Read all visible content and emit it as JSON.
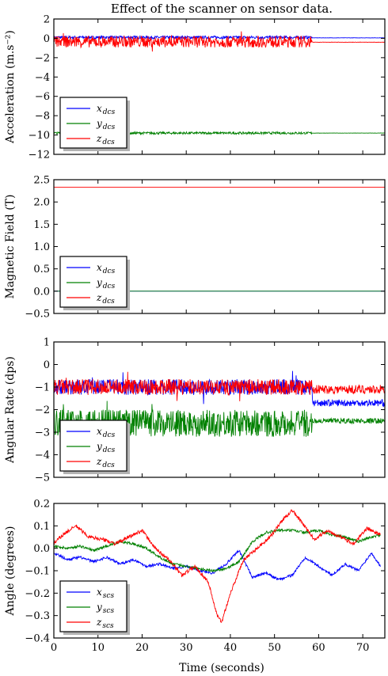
{
  "title": "Effect of the scanner on sensor data.",
  "xlabel": "Time (seconds)",
  "colors": {
    "x": "#0000ff",
    "y": "#008000",
    "z": "#ff0000"
  },
  "chart_data": [
    {
      "type": "line",
      "ylabel": "Acceleration (m.s⁻²)",
      "xlim": [
        0,
        75
      ],
      "ylim": [
        -12,
        2
      ],
      "xticks": [
        0,
        10,
        20,
        30,
        40,
        50,
        60,
        70
      ],
      "yticks": [
        -12,
        -10,
        -8,
        -6,
        -4,
        -2,
        0,
        2
      ],
      "xtick_labels": [
        "",
        "",
        "",
        "",
        "",
        "",
        "",
        ""
      ],
      "ytick_labels": [
        "−12",
        "−10",
        "−8",
        "−6",
        "−4",
        "−2",
        "0",
        "2"
      ],
      "legend": {
        "placement": "lower-left",
        "entries": [
          {
            "main": "x",
            "sub": "dcs"
          },
          {
            "main": "y",
            "sub": "dcs"
          },
          {
            "main": "z",
            "sub": "dcs"
          }
        ]
      },
      "series": [
        {
          "key": "x",
          "x": [
            0,
            58.5,
            58.6,
            75
          ],
          "y": [
            0.1,
            0.1,
            0.05,
            0.05
          ],
          "noise": 0.15,
          "noise_until": 58.5
        },
        {
          "key": "y",
          "x": [
            0,
            58.5,
            58.6,
            75
          ],
          "y": [
            -9.8,
            -9.8,
            -9.8,
            -9.8
          ],
          "noise": 0.12,
          "noise_until": 58.5
        },
        {
          "key": "z",
          "x": [
            0,
            58.5,
            58.6,
            75
          ],
          "y": [
            -0.35,
            -0.35,
            -0.4,
            -0.4
          ],
          "noise": 0.6,
          "noise_until": 58.5
        }
      ]
    },
    {
      "type": "line",
      "ylabel": "Magnetic Field (T)",
      "xlim": [
        0,
        75
      ],
      "ylim": [
        -0.5,
        2.5
      ],
      "xticks": [
        0,
        10,
        20,
        30,
        40,
        50,
        60,
        70
      ],
      "yticks": [
        -0.5,
        0,
        0.5,
        1,
        1.5,
        2,
        2.5
      ],
      "xtick_labels": [
        "",
        "",
        "",
        "",
        "",
        "",
        "",
        ""
      ],
      "ytick_labels": [
        "−0.5",
        "0.0",
        "0.5",
        "1.0",
        "1.5",
        "2.0",
        "2.5"
      ],
      "legend": {
        "placement": "lower-left",
        "entries": [
          {
            "main": "x",
            "sub": "dcs"
          },
          {
            "main": "y",
            "sub": "dcs"
          },
          {
            "main": "z",
            "sub": "dcs"
          }
        ]
      },
      "series": [
        {
          "key": "x",
          "x": [
            0,
            75
          ],
          "y": [
            0,
            0
          ],
          "noise": 0
        },
        {
          "key": "y",
          "x": [
            0,
            75
          ],
          "y": [
            0,
            0
          ],
          "noise": 0
        },
        {
          "key": "z",
          "x": [
            0,
            75
          ],
          "y": [
            2.33,
            2.33
          ],
          "noise": 0
        }
      ]
    },
    {
      "type": "line",
      "ylabel": "Angular Rate (dps)",
      "xlim": [
        0,
        75
      ],
      "ylim": [
        -5,
        1
      ],
      "xticks": [
        0,
        10,
        20,
        30,
        40,
        50,
        60,
        70
      ],
      "yticks": [
        -5,
        -4,
        -3,
        -2,
        -1,
        0,
        1
      ],
      "xtick_labels": [
        "",
        "",
        "",
        "",
        "",
        "",
        "",
        ""
      ],
      "ytick_labels": [
        "−5",
        "−4",
        "−3",
        "−2",
        "−1",
        "0",
        "1"
      ],
      "legend": {
        "placement": "lower-left",
        "entries": [
          {
            "main": "x",
            "sub": "dcs"
          },
          {
            "main": "y",
            "sub": "dcs"
          },
          {
            "main": "z",
            "sub": "dcs"
          }
        ]
      },
      "series": [
        {
          "key": "x",
          "x": [
            0,
            58.5,
            58.6,
            75
          ],
          "y": [
            -1.0,
            -1.0,
            -1.7,
            -1.7
          ],
          "noise": 0.35,
          "noise_after": 0.15
        },
        {
          "key": "y",
          "x": [
            0,
            58.5,
            58.6,
            75
          ],
          "y": [
            -2.6,
            -2.6,
            -2.5,
            -2.5
          ],
          "noise": 0.6,
          "noise_after": 0.12
        },
        {
          "key": "z",
          "x": [
            0,
            58.5,
            58.6,
            75
          ],
          "y": [
            -1.0,
            -1.0,
            -1.1,
            -1.1
          ],
          "noise": 0.35,
          "noise_after": 0.2
        }
      ]
    },
    {
      "type": "line",
      "ylabel": "Angle (degrees)",
      "xlim": [
        0,
        75
      ],
      "ylim": [
        -0.4,
        0.2
      ],
      "xticks": [
        0,
        10,
        20,
        30,
        40,
        50,
        60,
        70
      ],
      "yticks": [
        -0.4,
        -0.3,
        -0.2,
        -0.1,
        0,
        0.1,
        0.2
      ],
      "xtick_labels": [
        "0",
        "10",
        "20",
        "30",
        "40",
        "50",
        "60",
        "70"
      ],
      "ytick_labels": [
        "−0.4",
        "−0.3",
        "−0.2",
        "−0.1",
        "0.0",
        "0.1",
        "0.2"
      ],
      "legend": {
        "placement": "lower-left",
        "entries": [
          {
            "main": "x",
            "sub": "scs"
          },
          {
            "main": "y",
            "sub": "scs"
          },
          {
            "main": "z",
            "sub": "scs"
          }
        ]
      },
      "series": [
        {
          "key": "x",
          "noise": 0.006,
          "x": [
            0,
            3,
            6,
            9,
            12,
            15,
            18,
            21,
            24,
            27,
            30,
            33,
            36,
            39,
            42,
            45,
            48,
            51,
            54,
            57,
            60,
            63,
            66,
            69,
            72,
            74
          ],
          "y": [
            -0.02,
            -0.05,
            -0.04,
            -0.06,
            -0.04,
            -0.07,
            -0.05,
            -0.08,
            -0.07,
            -0.09,
            -0.08,
            -0.1,
            -0.11,
            -0.07,
            -0.01,
            -0.13,
            -0.11,
            -0.14,
            -0.12,
            -0.04,
            -0.08,
            -0.12,
            -0.07,
            -0.1,
            -0.02,
            -0.08
          ]
        },
        {
          "key": "y",
          "noise": 0.006,
          "x": [
            0,
            3,
            6,
            9,
            12,
            15,
            18,
            21,
            24,
            27,
            30,
            33,
            36,
            39,
            42,
            45,
            48,
            51,
            54,
            57,
            60,
            63,
            66,
            69,
            72,
            74
          ],
          "y": [
            0.01,
            0.0,
            0.01,
            -0.01,
            0.01,
            0.03,
            0.02,
            0.0,
            -0.04,
            -0.07,
            -0.08,
            -0.09,
            -0.1,
            -0.09,
            -0.06,
            0.03,
            0.07,
            0.08,
            0.08,
            0.07,
            0.08,
            0.06,
            0.05,
            0.03,
            0.05,
            0.06
          ]
        },
        {
          "key": "z",
          "noise": 0.008,
          "x": [
            0,
            2,
            5,
            8,
            11,
            14,
            17,
            20,
            23,
            26,
            29,
            32,
            35,
            37,
            38,
            40,
            43,
            46,
            49,
            52,
            54,
            56,
            59,
            62,
            65,
            68,
            71,
            74
          ],
          "y": [
            0.02,
            0.06,
            0.1,
            0.05,
            0.04,
            0.02,
            0.05,
            0.08,
            0.0,
            -0.05,
            -0.12,
            -0.08,
            -0.15,
            -0.3,
            -0.33,
            -0.2,
            -0.05,
            0.0,
            0.05,
            0.13,
            0.17,
            0.12,
            0.04,
            0.08,
            0.05,
            0.02,
            0.09,
            0.06
          ]
        }
      ]
    }
  ]
}
